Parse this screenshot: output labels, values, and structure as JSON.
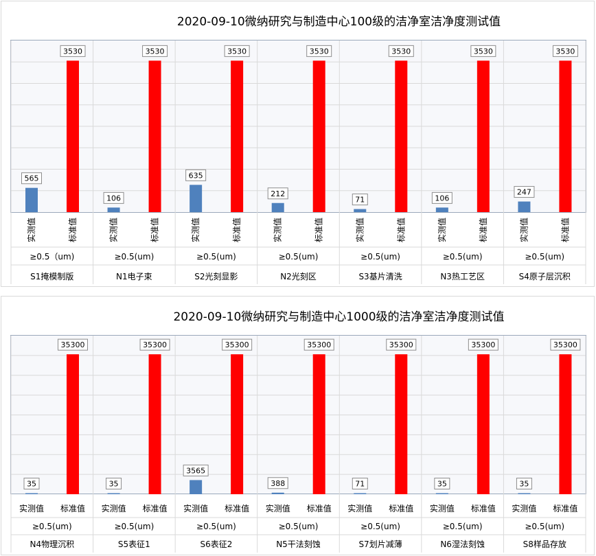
{
  "chart_data": [
    {
      "type": "bar",
      "title": "2020-09-10微纳研究与制造中心100级的洁净室洁净度测试值",
      "series_labels": [
        "实测值",
        "标准值"
      ],
      "size_labels": [
        "≥0.5（um)",
        "≥0.5(um)",
        "≥0.5(um)",
        "≥0.5(um)",
        "≥0.5(um)",
        "≥0.5(um)",
        "≥0.5(um)"
      ],
      "categories": [
        "S1掩模制版",
        "N1电子束",
        "S2光刻显影",
        "N2光刻区",
        "S3基片清洗",
        "N3热工艺区",
        "S4原子层沉积"
      ],
      "series": [
        {
          "values": [
            565,
            106,
            635,
            212,
            71,
            106,
            247
          ],
          "color": "#4f81bd"
        },
        {
          "values": [
            3530,
            3530,
            3530,
            3530,
            3530,
            3530,
            3530
          ],
          "color": "#ff0000"
        }
      ],
      "ylim": [
        0,
        4000
      ],
      "grid": true,
      "vertical_labels": true
    },
    {
      "type": "bar",
      "title": "2020-09-10微纳研究与制造中心1000级的洁净室洁净度测试值",
      "series_labels": [
        "实测值",
        "标准值"
      ],
      "size_labels": [
        "≥0.5(um)",
        "≥0.5(um)",
        "≥0.5(um)",
        "≥0.5(um)",
        "≥0.5(um)",
        "≥0.5(um)",
        "≥0.5(um)"
      ],
      "categories": [
        "N4物理沉积",
        "S5表征1",
        "S6表征2",
        "N5干法刻蚀",
        "S7划片减薄",
        "N6湿法刻蚀",
        "S8样品存放"
      ],
      "series": [
        {
          "values": [
            35,
            35,
            3565,
            388,
            71,
            35,
            35
          ],
          "color": "#4f81bd"
        },
        {
          "values": [
            35300,
            35300,
            35300,
            35300,
            35300,
            35300,
            35300
          ],
          "color": "#ff0000"
        }
      ],
      "ylim": [
        0,
        40000
      ],
      "grid": true,
      "vertical_labels": false
    }
  ]
}
